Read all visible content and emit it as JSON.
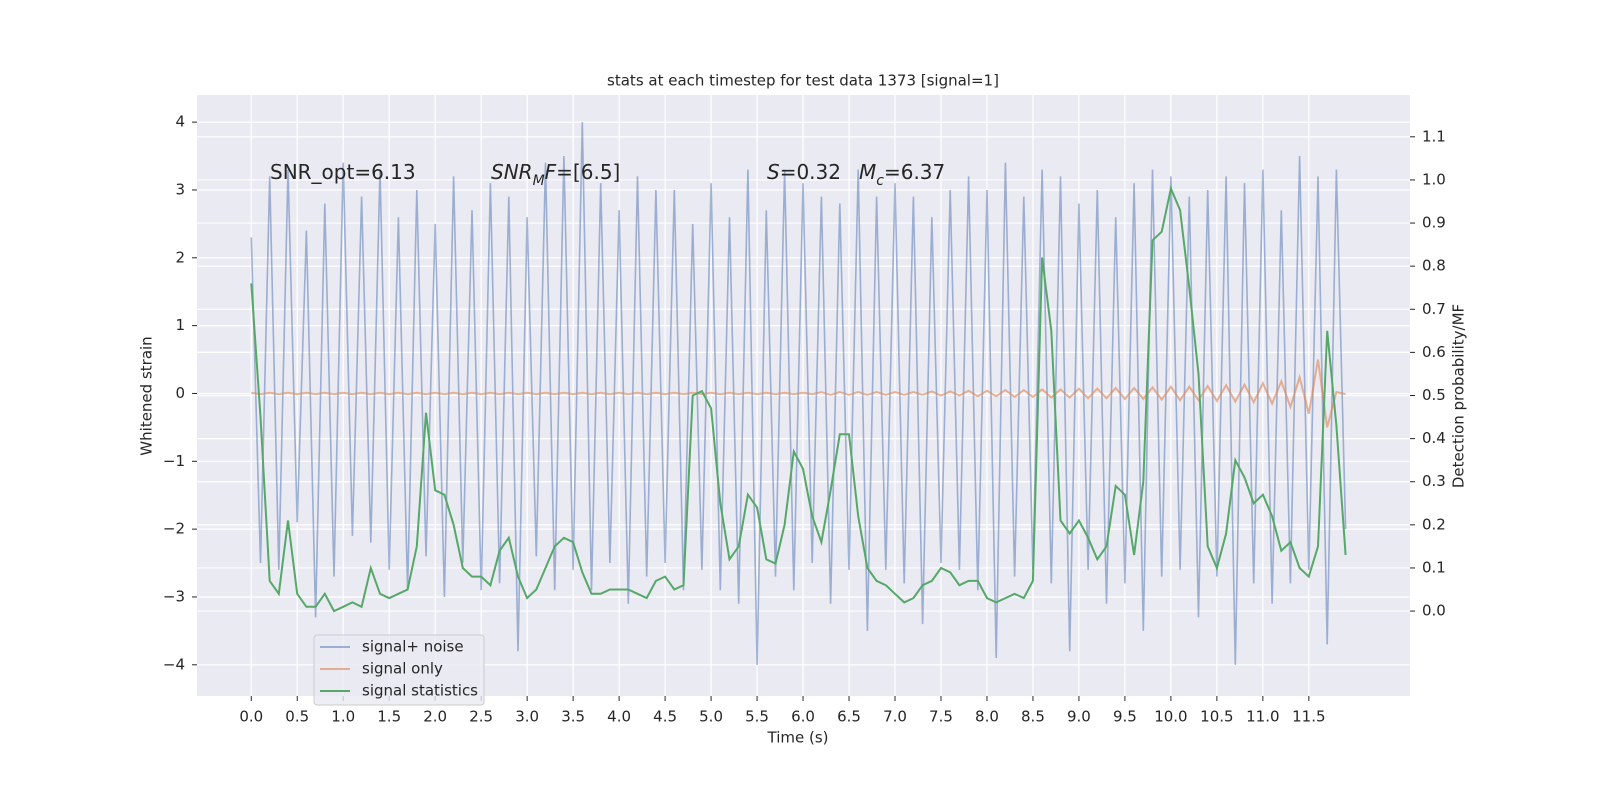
{
  "chart_data": {
    "type": "line",
    "title": "stats at each timestep for test data 1373 [signal=1]",
    "xlabel": "Time (s)",
    "ylabel": "Whitened strain",
    "y2label": "Detection probability/MF",
    "annotations": [
      {
        "segments": [
          {
            "text": "SNR_opt=6.13"
          }
        ]
      },
      {
        "segments": [
          {
            "text": "SNR",
            "style": "italic"
          },
          {
            "text": "M",
            "style": "italic-sub"
          },
          {
            "text": "F=[6.5]",
            "style": "italic-first"
          }
        ]
      },
      {
        "segments": [
          {
            "text": "S",
            "style": "italic"
          },
          {
            "text": "=0.32"
          }
        ]
      },
      {
        "segments": [
          {
            "text": "M",
            "style": "italic"
          },
          {
            "text": "c",
            "style": "italic-sub"
          },
          {
            "text": "=6.37"
          }
        ]
      }
    ],
    "grid": true,
    "background": "#eaeaf2",
    "legend": "lower left",
    "xlim": [
      -0.59,
      12.6
    ],
    "xticks": [
      {
        "value": 0,
        "label": "0.0"
      },
      0.5,
      {
        "value": 1,
        "label": "1.0"
      },
      1.5,
      {
        "value": 2,
        "label": "2.0"
      },
      2.5,
      {
        "value": 3,
        "label": "3.0"
      },
      3.5,
      {
        "value": 4,
        "label": "4.0"
      },
      4.5,
      {
        "value": 5,
        "label": "5.0"
      },
      5.5,
      {
        "value": 6,
        "label": "6.0"
      },
      6.5,
      {
        "value": 7,
        "label": "7.0"
      },
      7.5,
      {
        "value": 8,
        "label": "8.0"
      },
      8.5,
      {
        "value": 9,
        "label": "9.0"
      },
      9.5,
      {
        "value": 10,
        "label": "10.0"
      },
      10.5,
      {
        "value": 11,
        "label": "11.0"
      },
      11.5
    ],
    "ylim": [
      -4.46,
      4.4
    ],
    "yticks": [
      {
        "value": -4,
        "label": "−4"
      },
      {
        "value": -3,
        "label": "−3"
      },
      {
        "value": -2,
        "label": "−2"
      },
      {
        "value": -1,
        "label": "−1"
      },
      0,
      1,
      2,
      3,
      4
    ],
    "y2lim": [
      -0.197,
      1.197
    ],
    "y2ticks": [
      {
        "value": 0,
        "label": "0.0"
      },
      0.1,
      0.2,
      0.3,
      0.4,
      0.5,
      0.6,
      0.7,
      0.8,
      0.9,
      {
        "value": 1,
        "label": "1.0"
      },
      1.1
    ],
    "x": [
      0,
      0.1,
      0.2,
      0.3,
      0.4,
      0.5,
      0.6,
      0.7,
      0.8,
      0.9,
      1,
      1.1,
      1.2,
      1.3,
      1.4,
      1.5,
      1.6,
      1.7,
      1.8,
      1.9,
      2,
      2.1,
      2.2,
      2.3,
      2.4,
      2.5,
      2.6,
      2.7,
      2.8,
      2.9,
      3,
      3.1,
      3.2,
      3.3,
      3.4,
      3.5,
      3.6,
      3.7,
      3.8,
      3.9,
      4,
      4.1,
      4.2,
      4.3,
      4.4,
      4.5,
      4.6,
      4.7,
      4.8,
      4.9,
      5,
      5.1,
      5.2,
      5.3,
      5.4,
      5.5,
      5.6,
      5.7,
      5.8,
      5.9,
      6,
      6.1,
      6.2,
      6.3,
      6.4,
      6.5,
      6.6,
      6.7,
      6.8,
      6.9,
      7,
      7.1,
      7.2,
      7.3,
      7.4,
      7.5,
      7.6,
      7.7,
      7.8,
      7.9,
      8,
      8.1,
      8.2,
      8.3,
      8.4,
      8.5,
      8.6,
      8.7,
      8.8,
      8.9,
      9,
      9.1,
      9.2,
      9.3,
      9.4,
      9.5,
      9.6,
      9.7,
      9.8,
      9.9,
      10,
      10.1,
      10.2,
      10.3,
      10.4,
      10.5,
      10.6,
      10.7,
      10.8,
      10.9,
      11,
      11.1,
      11.2,
      11.3,
      11.4,
      11.5,
      11.6,
      11.7,
      11.8,
      11.9
    ],
    "series": [
      {
        "name": "signal+ noise",
        "color": "#4c72b0",
        "opacity": 0.5,
        "axis": "y",
        "values": [
          2.3,
          -2.5,
          3.2,
          -2.6,
          3.3,
          -1.9,
          2.4,
          -3.3,
          2.8,
          -2.7,
          3.4,
          -2.1,
          2.9,
          -2.2,
          3.3,
          -2.6,
          2.6,
          -2.9,
          3.0,
          -2.4,
          2.5,
          -3.0,
          3.2,
          -2.5,
          2.7,
          -2.9,
          3.1,
          -2.8,
          2.9,
          -3.8,
          2.6,
          -2.4,
          3.4,
          -2.9,
          3.5,
          -2.6,
          4.0,
          -2.9,
          3.1,
          -2.5,
          2.7,
          -3.1,
          3.2,
          -2.7,
          3.0,
          -2.5,
          3.0,
          -2.9,
          2.5,
          -2.6,
          3.1,
          -2.9,
          2.6,
          -3.1,
          3.3,
          -4.0,
          2.7,
          -2.7,
          3.3,
          -2.9,
          3.1,
          -2.5,
          2.9,
          -3.1,
          2.8,
          -2.6,
          3.3,
          -3.5,
          2.9,
          -2.6,
          3.1,
          -2.8,
          2.9,
          -3.4,
          2.6,
          -2.5,
          3.0,
          -2.6,
          3.2,
          -2.9,
          3.0,
          -3.9,
          3.4,
          -2.7,
          2.9,
          -2.6,
          3.3,
          -2.8,
          3.2,
          -3.8,
          2.8,
          -2.6,
          3.0,
          -3.1,
          2.6,
          -2.8,
          3.1,
          -3.5,
          3.3,
          -2.7,
          3.2,
          -2.6,
          2.9,
          -3.3,
          3.0,
          -2.7,
          3.2,
          -4.0,
          3.1,
          -2.8,
          3.3,
          -3.1,
          2.7,
          -2.8,
          3.5,
          -2.6,
          3.2,
          -3.7,
          3.3,
          -2.0
        ]
      },
      {
        "name": "signal only",
        "color": "#dd8452",
        "opacity": 0.6,
        "axis": "y",
        "values": [
          0.01,
          -0.01,
          0.01,
          -0.01,
          0.01,
          -0.01,
          0.01,
          -0.01,
          0.01,
          -0.01,
          0.01,
          -0.01,
          0.01,
          -0.01,
          0.01,
          -0.01,
          0.01,
          -0.01,
          0.01,
          -0.01,
          0.01,
          -0.01,
          0.01,
          -0.01,
          0.01,
          -0.01,
          0.01,
          -0.01,
          0.01,
          -0.01,
          0.01,
          -0.01,
          0.01,
          -0.01,
          0.01,
          -0.01,
          0.01,
          -0.01,
          0.01,
          -0.01,
          0.01,
          -0.01,
          0.01,
          -0.01,
          0.01,
          -0.01,
          0.01,
          -0.01,
          0.01,
          -0.01,
          0.01,
          -0.01,
          0.01,
          -0.01,
          0.01,
          -0.01,
          0.01,
          -0.01,
          0.01,
          -0.01,
          0.01,
          -0.01,
          0.02,
          -0.02,
          0.02,
          -0.02,
          0.02,
          -0.02,
          0.02,
          -0.02,
          0.02,
          -0.02,
          0.02,
          -0.02,
          0.03,
          -0.03,
          0.03,
          -0.03,
          0.04,
          -0.04,
          0.04,
          -0.04,
          0.05,
          -0.05,
          0.05,
          -0.05,
          0.06,
          -0.06,
          0.06,
          -0.06,
          0.07,
          -0.07,
          0.07,
          -0.07,
          0.08,
          -0.08,
          0.08,
          -0.08,
          0.09,
          -0.09,
          0.1,
          -0.1,
          0.1,
          -0.1,
          0.11,
          -0.11,
          0.12,
          -0.12,
          0.13,
          -0.13,
          0.15,
          -0.15,
          0.18,
          -0.2,
          0.24,
          -0.3,
          0.5,
          -0.5,
          0.02,
          -0.01
        ]
      },
      {
        "name": "signal statistics",
        "color": "#55a868",
        "opacity": 1,
        "axis": "y2",
        "values": [
          0.76,
          0.45,
          0.07,
          0.04,
          0.21,
          0.04,
          0.01,
          0.01,
          0.04,
          0.0,
          0.01,
          0.02,
          0.01,
          0.1,
          0.04,
          0.03,
          0.04,
          0.05,
          0.15,
          0.46,
          0.28,
          0.27,
          0.2,
          0.1,
          0.08,
          0.08,
          0.06,
          0.14,
          0.17,
          0.08,
          0.03,
          0.05,
          0.1,
          0.15,
          0.17,
          0.16,
          0.09,
          0.04,
          0.04,
          0.05,
          0.05,
          0.05,
          0.04,
          0.03,
          0.07,
          0.08,
          0.05,
          0.06,
          0.5,
          0.51,
          0.47,
          0.25,
          0.12,
          0.15,
          0.27,
          0.24,
          0.12,
          0.11,
          0.2,
          0.37,
          0.33,
          0.22,
          0.16,
          0.28,
          0.41,
          0.41,
          0.22,
          0.1,
          0.07,
          0.06,
          0.04,
          0.02,
          0.03,
          0.06,
          0.07,
          0.1,
          0.09,
          0.06,
          0.07,
          0.07,
          0.03,
          0.02,
          0.03,
          0.04,
          0.03,
          0.07,
          0.82,
          0.65,
          0.21,
          0.18,
          0.21,
          0.17,
          0.12,
          0.15,
          0.29,
          0.27,
          0.13,
          0.3,
          0.86,
          0.88,
          0.98,
          0.93,
          0.75,
          0.55,
          0.15,
          0.1,
          0.18,
          0.35,
          0.31,
          0.25,
          0.27,
          0.22,
          0.14,
          0.16,
          0.1,
          0.08,
          0.15,
          0.65,
          0.43,
          0.13
        ]
      }
    ]
  }
}
